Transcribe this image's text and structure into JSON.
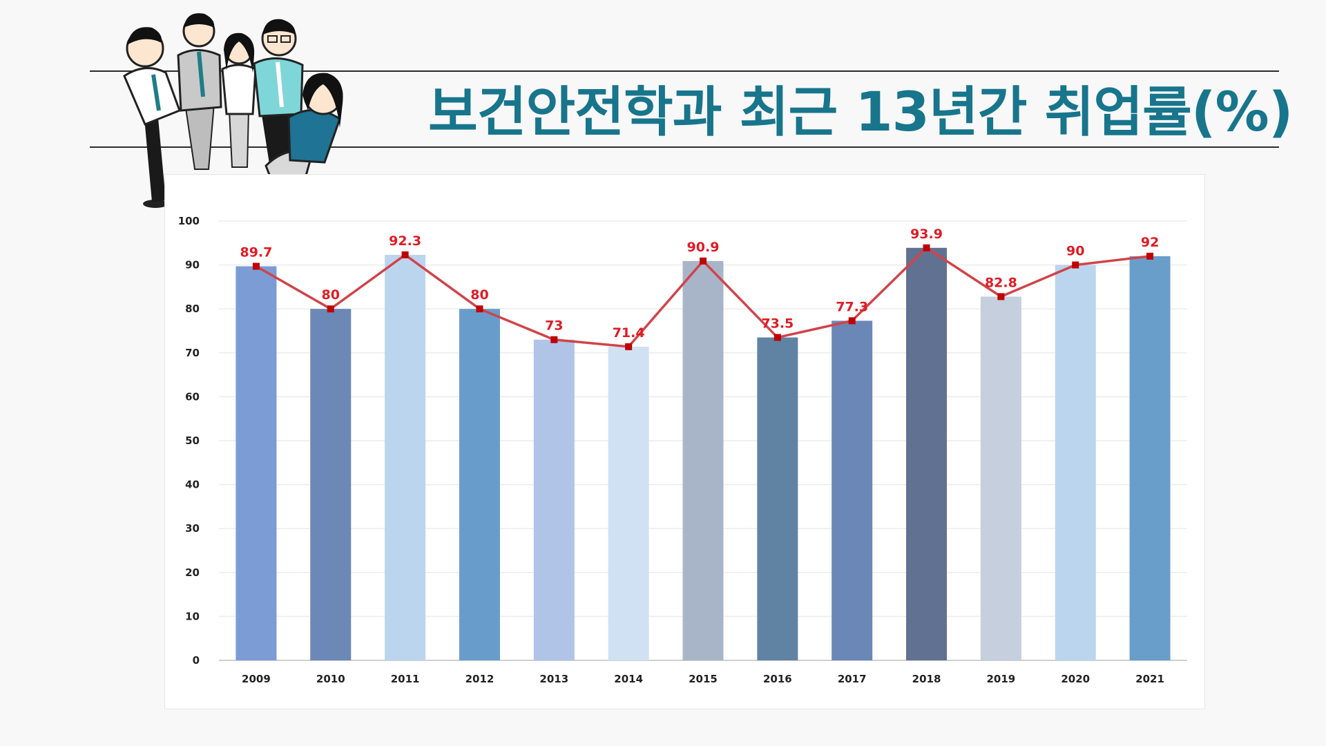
{
  "page": {
    "title": "보건안전학과 최근 13년간 취업률(%)",
    "illustration_icon": "group-of-office-workers-thumbs-up",
    "title_color": "#17758c"
  },
  "chart_data": {
    "type": "bar",
    "title": "",
    "xlabel": "",
    "ylabel": "",
    "categories": [
      "2009",
      "2010",
      "2011",
      "2012",
      "2013",
      "2014",
      "2015",
      "2016",
      "2017",
      "2018",
      "2019",
      "2020",
      "2021"
    ],
    "values": [
      89.7,
      80,
      92.3,
      80,
      73,
      71.4,
      90.9,
      73.5,
      77.3,
      93.9,
      82.8,
      90,
      92
    ],
    "value_labels": [
      "89.7",
      "80",
      "92.3",
      "80",
      "73",
      "71.4",
      "90.9",
      "73.5",
      "77.3",
      "93.9",
      "82.8",
      "90",
      "92"
    ],
    "ylim": [
      0,
      100
    ],
    "yticks": [
      "0",
      "10",
      "20",
      "30",
      "40",
      "50",
      "60",
      "70",
      "80",
      "90",
      "100"
    ],
    "bar_colors": [
      "#7b9cd4",
      "#6b88b7",
      "#bcd5ee",
      "#689dcb",
      "#b0c4e7",
      "#cfe1f3",
      "#a8b5c8",
      "#6083a3",
      "#6b87b7",
      "#617191",
      "#c5cfdd",
      "#bcd5ee",
      "#699ecb"
    ],
    "line_overlay": true,
    "line_color": "#d0444a",
    "marker_color": "#c00000",
    "label_color": "#e01b24",
    "grid": true,
    "legend": "none"
  }
}
